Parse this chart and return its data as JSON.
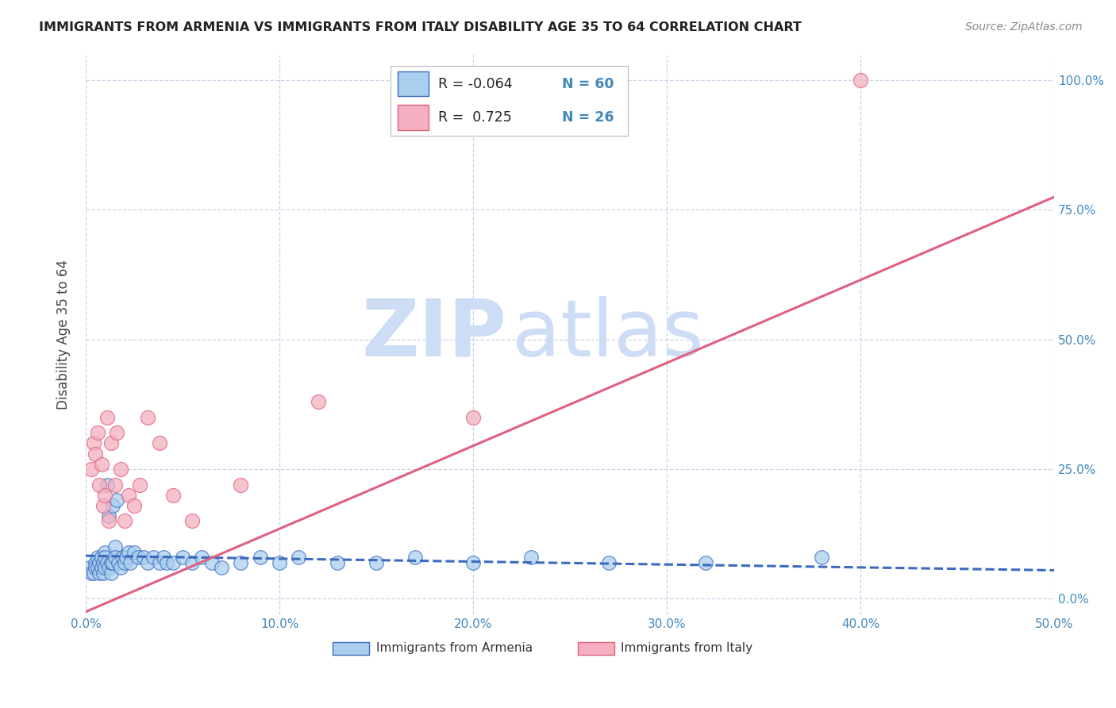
{
  "title": "IMMIGRANTS FROM ARMENIA VS IMMIGRANTS FROM ITALY DISABILITY AGE 35 TO 64 CORRELATION CHART",
  "source": "Source: ZipAtlas.com",
  "xlabel": "",
  "ylabel": "Disability Age 35 to 64",
  "xlim": [
    0.0,
    0.5
  ],
  "ylim": [
    -0.03,
    1.05
  ],
  "xtick_labels": [
    "0.0%",
    "10.0%",
    "20.0%",
    "30.0%",
    "40.0%",
    "50.0%"
  ],
  "xtick_vals": [
    0.0,
    0.1,
    0.2,
    0.3,
    0.4,
    0.5
  ],
  "ytick_labels": [
    "0.0%",
    "25.0%",
    "50.0%",
    "75.0%",
    "100.0%"
  ],
  "ytick_vals": [
    0.0,
    0.25,
    0.5,
    0.75,
    1.0
  ],
  "armenia_R": -0.064,
  "armenia_N": 60,
  "italy_R": 0.725,
  "italy_N": 26,
  "armenia_color": "#aacfee",
  "italy_color": "#f4b0c0",
  "armenia_line_color": "#3b6abf",
  "italy_line_color": "#e06080",
  "legend_label_armenia": "Immigrants from Armenia",
  "legend_label_italy": "Immigrants from Italy",
  "background_color": "#ffffff",
  "grid_color": "#c8d4e8",
  "watermark_zip": "ZIP",
  "watermark_atlas": "atlas",
  "watermark_color": "#ccddf5",
  "armenia_x": [
    0.002,
    0.003,
    0.004,
    0.005,
    0.005,
    0.006,
    0.006,
    0.007,
    0.007,
    0.008,
    0.008,
    0.009,
    0.009,
    0.01,
    0.01,
    0.01,
    0.011,
    0.011,
    0.012,
    0.012,
    0.013,
    0.013,
    0.014,
    0.014,
    0.015,
    0.015,
    0.016,
    0.017,
    0.018,
    0.019,
    0.02,
    0.021,
    0.022,
    0.023,
    0.025,
    0.027,
    0.03,
    0.032,
    0.035,
    0.038,
    0.04,
    0.042,
    0.045,
    0.05,
    0.055,
    0.06,
    0.065,
    0.07,
    0.08,
    0.09,
    0.1,
    0.11,
    0.13,
    0.15,
    0.17,
    0.2,
    0.23,
    0.27,
    0.32,
    0.38
  ],
  "armenia_y": [
    0.06,
    0.05,
    0.05,
    0.07,
    0.06,
    0.08,
    0.06,
    0.07,
    0.05,
    0.08,
    0.06,
    0.07,
    0.05,
    0.09,
    0.08,
    0.06,
    0.22,
    0.07,
    0.16,
    0.06,
    0.05,
    0.07,
    0.18,
    0.07,
    0.1,
    0.08,
    0.19,
    0.07,
    0.06,
    0.08,
    0.07,
    0.08,
    0.09,
    0.07,
    0.09,
    0.08,
    0.08,
    0.07,
    0.08,
    0.07,
    0.08,
    0.07,
    0.07,
    0.08,
    0.07,
    0.08,
    0.07,
    0.06,
    0.07,
    0.08,
    0.07,
    0.08,
    0.07,
    0.07,
    0.08,
    0.07,
    0.08,
    0.07,
    0.07,
    0.08
  ],
  "italy_x": [
    0.003,
    0.004,
    0.005,
    0.006,
    0.007,
    0.008,
    0.009,
    0.01,
    0.011,
    0.012,
    0.013,
    0.015,
    0.016,
    0.018,
    0.02,
    0.022,
    0.025,
    0.028,
    0.032,
    0.038,
    0.045,
    0.055,
    0.08,
    0.12,
    0.2,
    0.4
  ],
  "italy_y": [
    0.25,
    0.3,
    0.28,
    0.32,
    0.22,
    0.26,
    0.18,
    0.2,
    0.35,
    0.15,
    0.3,
    0.22,
    0.32,
    0.25,
    0.15,
    0.2,
    0.18,
    0.22,
    0.35,
    0.3,
    0.2,
    0.15,
    0.22,
    0.38,
    0.35,
    1.0
  ],
  "armenia_trend_x": [
    0.0,
    0.5
  ],
  "armenia_trend_y": [
    0.083,
    0.055
  ],
  "italy_trend_x": [
    0.0,
    0.5
  ],
  "italy_trend_y": [
    -0.025,
    0.775
  ]
}
